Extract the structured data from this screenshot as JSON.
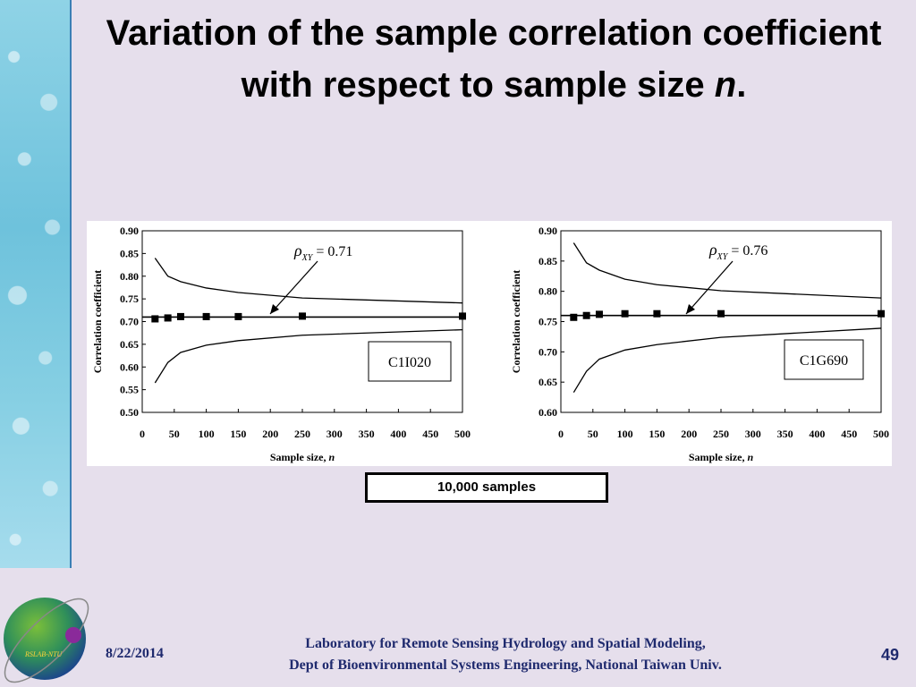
{
  "slide": {
    "title_main": "Variation of the sample correlation coefficient with respect to sample size",
    "title_var": "n",
    "title_end": ".",
    "caption": "10,000 samples"
  },
  "footer": {
    "date": "8/22/2014",
    "lab_line1": "Laboratory for Remote Sensing Hydrology and Spatial Modeling,",
    "lab_line2": "Dept of Bioenvironmental Systems Engineering,  National Taiwan Univ.",
    "page": "49",
    "logo_text": "RSLAB-NTU"
  },
  "chart_data": [
    {
      "type": "line",
      "code_label": "C1I020",
      "annotation": "ρXY = 0.71",
      "annotation_symbol": "ρ",
      "annotation_sub": "XY",
      "annotation_value": " = 0.71",
      "xlabel": "Sample size, ",
      "xlabel_var": "n",
      "ylabel": "Correlation coefficient",
      "xlim": [
        0,
        500
      ],
      "ylim": [
        0.5,
        0.9
      ],
      "xticks": [
        "0",
        "50",
        "100",
        "150",
        "200",
        "250",
        "300",
        "350",
        "400",
        "450",
        "500"
      ],
      "yticks": [
        "0.90",
        "0.85",
        "0.80",
        "0.75",
        "0.70",
        "0.65",
        "0.60",
        "0.55",
        "0.50"
      ],
      "population_rho": 0.71,
      "series": [
        {
          "name": "upper bound",
          "x": [
            20,
            40,
            60,
            100,
            150,
            250,
            500
          ],
          "y": [
            0.84,
            0.8,
            0.788,
            0.774,
            0.764,
            0.752,
            0.741
          ]
        },
        {
          "name": "lower bound",
          "x": [
            20,
            40,
            60,
            100,
            150,
            250,
            500
          ],
          "y": [
            0.565,
            0.61,
            0.632,
            0.648,
            0.658,
            0.67,
            0.682
          ]
        },
        {
          "name": "sample mean",
          "x": [
            20,
            40,
            60,
            100,
            150,
            250,
            500
          ],
          "y": [
            0.706,
            0.708,
            0.711,
            0.711,
            0.711,
            0.712,
            0.712
          ]
        }
      ]
    },
    {
      "type": "line",
      "code_label": "C1G690",
      "annotation": "ρXY = 0.76",
      "annotation_symbol": "ρ",
      "annotation_sub": "XY",
      "annotation_value": " = 0.76",
      "xlabel": "Sample size, ",
      "xlabel_var": "n",
      "ylabel": "Correlation coefficient",
      "xlim": [
        0,
        500
      ],
      "ylim": [
        0.6,
        0.9
      ],
      "xticks": [
        "0",
        "50",
        "100",
        "150",
        "200",
        "250",
        "300",
        "350",
        "400",
        "450",
        "500"
      ],
      "yticks": [
        "0.90",
        "0.85",
        "0.80",
        "0.75",
        "0.70",
        "0.65",
        "0.60"
      ],
      "population_rho": 0.76,
      "series": [
        {
          "name": "upper bound",
          "x": [
            20,
            40,
            60,
            100,
            150,
            250,
            500
          ],
          "y": [
            0.88,
            0.847,
            0.835,
            0.82,
            0.811,
            0.801,
            0.789
          ]
        },
        {
          "name": "lower bound",
          "x": [
            20,
            40,
            60,
            100,
            150,
            250,
            500
          ],
          "y": [
            0.633,
            0.668,
            0.688,
            0.703,
            0.712,
            0.724,
            0.739
          ]
        },
        {
          "name": "sample mean",
          "x": [
            20,
            40,
            60,
            100,
            150,
            250,
            500
          ],
          "y": [
            0.757,
            0.76,
            0.762,
            0.763,
            0.763,
            0.763,
            0.763
          ]
        }
      ]
    }
  ]
}
